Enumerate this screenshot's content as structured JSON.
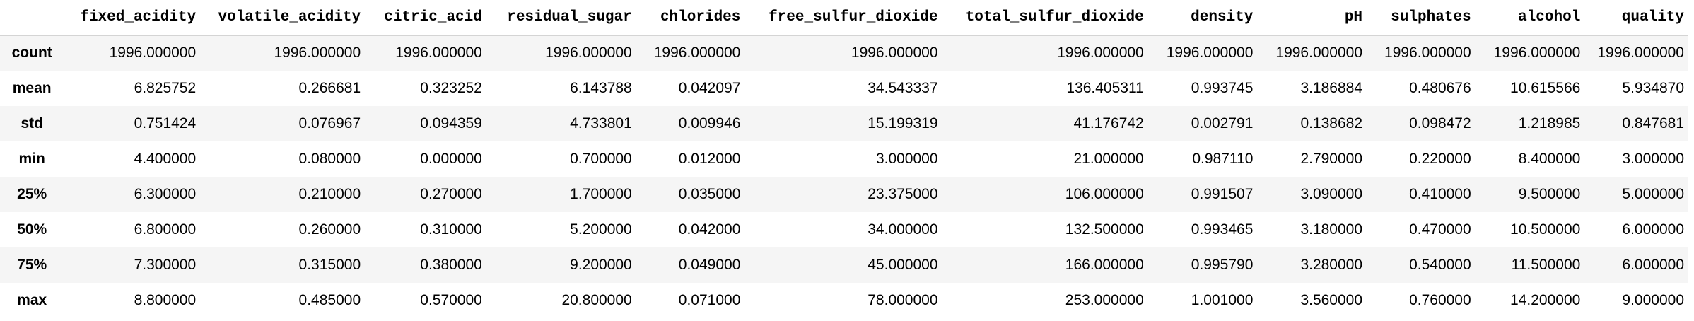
{
  "table": {
    "columns": [
      "fixed_acidity",
      "volatile_acidity",
      "citric_acid",
      "residual_sugar",
      "chlorides",
      "free_sulfur_dioxide",
      "total_sulfur_dioxide",
      "density",
      "pH",
      "sulphates",
      "alcohol",
      "quality"
    ],
    "rows": [
      {
        "label": "count",
        "values": [
          "1996.000000",
          "1996.000000",
          "1996.000000",
          "1996.000000",
          "1996.000000",
          "1996.000000",
          "1996.000000",
          "1996.000000",
          "1996.000000",
          "1996.000000",
          "1996.000000",
          "1996.000000"
        ]
      },
      {
        "label": "mean",
        "values": [
          "6.825752",
          "0.266681",
          "0.323252",
          "6.143788",
          "0.042097",
          "34.543337",
          "136.405311",
          "0.993745",
          "3.186884",
          "0.480676",
          "10.615566",
          "5.934870"
        ]
      },
      {
        "label": "std",
        "values": [
          "0.751424",
          "0.076967",
          "0.094359",
          "4.733801",
          "0.009946",
          "15.199319",
          "41.176742",
          "0.002791",
          "0.138682",
          "0.098472",
          "1.218985",
          "0.847681"
        ]
      },
      {
        "label": "min",
        "values": [
          "4.400000",
          "0.080000",
          "0.000000",
          "0.700000",
          "0.012000",
          "3.000000",
          "21.000000",
          "0.987110",
          "2.790000",
          "0.220000",
          "8.400000",
          "3.000000"
        ]
      },
      {
        "label": "25%",
        "values": [
          "6.300000",
          "0.210000",
          "0.270000",
          "1.700000",
          "0.035000",
          "23.375000",
          "106.000000",
          "0.991507",
          "3.090000",
          "0.410000",
          "9.500000",
          "5.000000"
        ]
      },
      {
        "label": "50%",
        "values": [
          "6.800000",
          "0.260000",
          "0.310000",
          "5.200000",
          "0.042000",
          "34.000000",
          "132.500000",
          "0.993465",
          "3.180000",
          "0.470000",
          "10.500000",
          "6.000000"
        ]
      },
      {
        "label": "75%",
        "values": [
          "7.300000",
          "0.315000",
          "0.380000",
          "9.200000",
          "0.049000",
          "45.000000",
          "166.000000",
          "0.995790",
          "3.280000",
          "0.540000",
          "11.500000",
          "6.000000"
        ]
      },
      {
        "label": "max",
        "values": [
          "8.800000",
          "0.485000",
          "0.570000",
          "20.800000",
          "0.071000",
          "78.000000",
          "253.000000",
          "1.001000",
          "3.560000",
          "0.760000",
          "14.200000",
          "9.000000"
        ]
      }
    ]
  }
}
